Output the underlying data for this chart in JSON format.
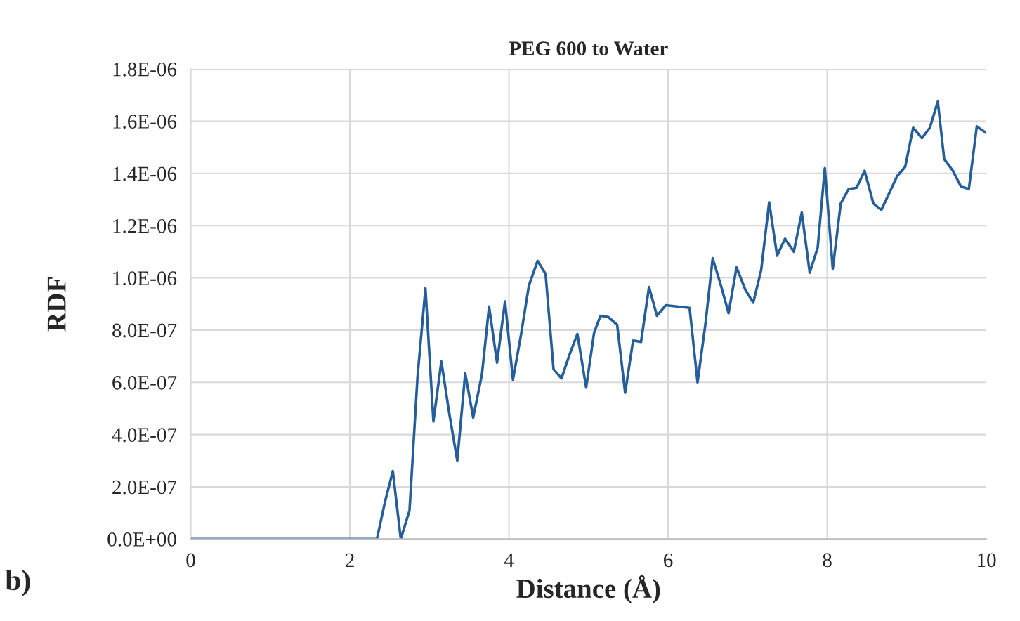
{
  "chart_data": {
    "type": "line",
    "title": "PEG 600 to Water",
    "xlabel": "Distance (Å)",
    "ylabel": "RDF",
    "annotations": [
      "b)"
    ],
    "x": [
      0,
      2.34,
      2.44,
      2.54,
      2.64,
      2.75,
      2.85,
      2.95,
      3.05,
      3.15,
      3.25,
      3.35,
      3.45,
      3.55,
      3.66,
      3.75,
      3.85,
      3.95,
      4.05,
      4.15,
      4.25,
      4.36,
      4.46,
      4.56,
      4.66,
      4.76,
      4.86,
      4.97,
      5.07,
      5.15,
      5.25,
      5.36,
      5.46,
      5.56,
      5.66,
      5.76,
      5.86,
      5.97,
      6.27,
      6.37,
      6.47,
      6.56,
      6.66,
      6.76,
      6.86,
      6.97,
      7.07,
      7.17,
      7.27,
      7.37,
      7.47,
      7.58,
      7.68,
      7.78,
      7.88,
      7.97,
      8.07,
      8.17,
      8.27,
      8.37,
      8.47,
      8.58,
      8.68,
      8.78,
      8.88,
      8.98,
      9.08,
      9.19,
      9.29,
      9.39,
      9.47,
      9.58,
      9.68,
      9.78,
      9.88,
      10.0
    ],
    "series": [
      {
        "color": "#255e99",
        "values": [
          0,
          0,
          1.4e-07,
          2.6e-07,
          0,
          1.1e-07,
          6.2e-07,
          9.6e-07,
          4.5e-07,
          6.8e-07,
          4.8e-07,
          3e-07,
          6.35e-07,
          4.65e-07,
          6.3e-07,
          8.9e-07,
          6.75e-07,
          9.1e-07,
          6.1e-07,
          7.8e-07,
          9.7e-07,
          1.065e-06,
          1.015e-06,
          6.5e-07,
          6.15e-07,
          7.05e-07,
          7.85e-07,
          5.8e-07,
          7.9e-07,
          8.55e-07,
          8.5e-07,
          8.2e-07,
          5.6e-07,
          7.6e-07,
          7.55e-07,
          9.65e-07,
          8.55e-07,
          8.95e-07,
          8.85e-07,
          6e-07,
          8.25e-07,
          1.075e-06,
          9.75e-07,
          8.65e-07,
          1.04e-06,
          9.55e-07,
          9.05e-07,
          1.03e-06,
          1.29e-06,
          1.085e-06,
          1.15e-06,
          1.1e-06,
          1.25e-06,
          1.02e-06,
          1.115e-06,
          1.42e-06,
          1.035e-06,
          1.285e-06,
          1.34e-06,
          1.345e-06,
          1.41e-06,
          1.285e-06,
          1.26e-06,
          1.325e-06,
          1.39e-06,
          1.425e-06,
          1.575e-06,
          1.535e-06,
          1.575e-06,
          1.675e-06,
          1.455e-06,
          1.41e-06,
          1.35e-06,
          1.34e-06,
          1.58e-06,
          1.555e-06
        ]
      }
    ],
    "xlim": [
      0,
      10
    ],
    "xticks": [
      0,
      2,
      4,
      6,
      8,
      10
    ],
    "ylim": [
      0,
      1.8e-06
    ],
    "yticks": [
      {
        "value": 0,
        "label": "0.0E+00"
      },
      {
        "value": 2e-07,
        "label": "2.0E-07"
      },
      {
        "value": 4e-07,
        "label": "4.0E-07"
      },
      {
        "value": 6e-07,
        "label": "6.0E-07"
      },
      {
        "value": 8e-07,
        "label": "8.0E-07"
      },
      {
        "value": 1e-06,
        "label": "1.0E-06"
      },
      {
        "value": 1.2e-06,
        "label": "1.2E-06"
      },
      {
        "value": 1.4e-06,
        "label": "1.4E-06"
      },
      {
        "value": 1.6e-06,
        "label": "1.6E-06"
      },
      {
        "value": 1.8e-06,
        "label": "1.8E-06"
      }
    ],
    "grid": true,
    "marker": "none",
    "line_style": "solid"
  }
}
